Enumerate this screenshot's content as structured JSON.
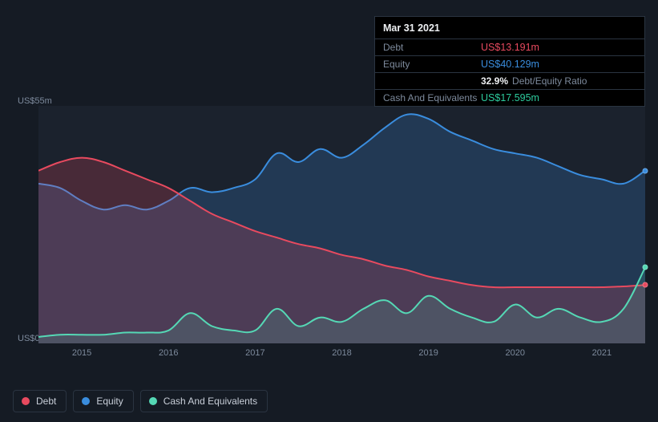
{
  "background_color": "#151b24",
  "plot_background": "#1b222d",
  "grid_color": "#2a3441",
  "text_color": "#7d8a9c",
  "tooltip": {
    "date": "Mar 31 2021",
    "rows": [
      {
        "label": "Debt",
        "value": "US$13.191m",
        "class": "debt"
      },
      {
        "label": "Equity",
        "value": "US$40.129m",
        "class": "equity"
      },
      {
        "label": "",
        "ratio_value": "32.9%",
        "ratio_label": "Debt/Equity Ratio"
      },
      {
        "label": "Cash And Equivalents",
        "value": "US$17.595m",
        "class": "cash"
      }
    ]
  },
  "chart": {
    "type": "area",
    "ylim": [
      0,
      55
    ],
    "y_labels": {
      "top": "US$55m",
      "bottom": "US$0"
    },
    "x_years": [
      2015,
      2016,
      2017,
      2018,
      2019,
      2020,
      2021
    ],
    "x_range": [
      2014.5,
      2021.5
    ],
    "series": {
      "debt": {
        "label": "Debt",
        "color": "#e84a5f",
        "fill": "rgba(232,74,95,0.22)",
        "line_width": 2,
        "points": [
          [
            2014.5,
            40
          ],
          [
            2014.75,
            42
          ],
          [
            2015.0,
            43
          ],
          [
            2015.25,
            42
          ],
          [
            2015.5,
            40
          ],
          [
            2015.75,
            38
          ],
          [
            2016.0,
            36
          ],
          [
            2016.25,
            33
          ],
          [
            2016.5,
            30
          ],
          [
            2016.75,
            28
          ],
          [
            2017.0,
            26
          ],
          [
            2017.25,
            24.5
          ],
          [
            2017.5,
            23
          ],
          [
            2017.75,
            22
          ],
          [
            2018.0,
            20.5
          ],
          [
            2018.25,
            19.5
          ],
          [
            2018.5,
            18
          ],
          [
            2018.75,
            17
          ],
          [
            2019.0,
            15.5
          ],
          [
            2019.25,
            14.5
          ],
          [
            2019.5,
            13.5
          ],
          [
            2019.75,
            13
          ],
          [
            2020.0,
            13
          ],
          [
            2020.25,
            13
          ],
          [
            2020.5,
            13
          ],
          [
            2020.75,
            13
          ],
          [
            2021.0,
            13
          ],
          [
            2021.25,
            13.2
          ],
          [
            2021.5,
            13.5
          ]
        ]
      },
      "equity": {
        "label": "Equity",
        "color": "#3a8dde",
        "fill": "rgba(58,141,222,0.22)",
        "line_width": 2,
        "points": [
          [
            2014.5,
            37
          ],
          [
            2014.75,
            36
          ],
          [
            2015.0,
            33
          ],
          [
            2015.25,
            31
          ],
          [
            2015.5,
            32
          ],
          [
            2015.75,
            31
          ],
          [
            2016.0,
            33
          ],
          [
            2016.25,
            36
          ],
          [
            2016.5,
            35
          ],
          [
            2016.75,
            36
          ],
          [
            2017.0,
            38
          ],
          [
            2017.25,
            44
          ],
          [
            2017.5,
            42
          ],
          [
            2017.75,
            45
          ],
          [
            2018.0,
            43
          ],
          [
            2018.25,
            46
          ],
          [
            2018.5,
            50
          ],
          [
            2018.75,
            53
          ],
          [
            2019.0,
            52
          ],
          [
            2019.25,
            49
          ],
          [
            2019.5,
            47
          ],
          [
            2019.75,
            45
          ],
          [
            2020.0,
            44
          ],
          [
            2020.25,
            43
          ],
          [
            2020.5,
            41
          ],
          [
            2020.75,
            39
          ],
          [
            2021.0,
            38
          ],
          [
            2021.25,
            37
          ],
          [
            2021.5,
            40
          ]
        ]
      },
      "cash": {
        "label": "Cash And Equivalents",
        "color": "#55d8b5",
        "fill": "rgba(85,216,181,0.15)",
        "line_width": 2,
        "points": [
          [
            2014.5,
            1.5
          ],
          [
            2014.75,
            2
          ],
          [
            2015.0,
            2
          ],
          [
            2015.25,
            2
          ],
          [
            2015.5,
            2.5
          ],
          [
            2015.75,
            2.5
          ],
          [
            2016.0,
            3
          ],
          [
            2016.25,
            7
          ],
          [
            2016.5,
            4
          ],
          [
            2016.75,
            3
          ],
          [
            2017.0,
            3
          ],
          [
            2017.25,
            8
          ],
          [
            2017.5,
            4
          ],
          [
            2017.75,
            6
          ],
          [
            2018.0,
            5
          ],
          [
            2018.25,
            8
          ],
          [
            2018.5,
            10
          ],
          [
            2018.75,
            7
          ],
          [
            2019.0,
            11
          ],
          [
            2019.25,
            8
          ],
          [
            2019.5,
            6
          ],
          [
            2019.75,
            5
          ],
          [
            2020.0,
            9
          ],
          [
            2020.25,
            6
          ],
          [
            2020.5,
            8
          ],
          [
            2020.75,
            6
          ],
          [
            2021.0,
            5
          ],
          [
            2021.25,
            8
          ],
          [
            2021.5,
            17.6
          ]
        ]
      }
    },
    "draw_order": [
      "equity",
      "debt",
      "cash"
    ],
    "end_markers": [
      "equity",
      "debt",
      "cash"
    ]
  },
  "legend": [
    {
      "key": "debt",
      "label": "Debt",
      "color": "#e84a5f"
    },
    {
      "key": "equity",
      "label": "Equity",
      "color": "#3a8dde"
    },
    {
      "key": "cash",
      "label": "Cash And Equivalents",
      "color": "#55d8b5"
    }
  ]
}
